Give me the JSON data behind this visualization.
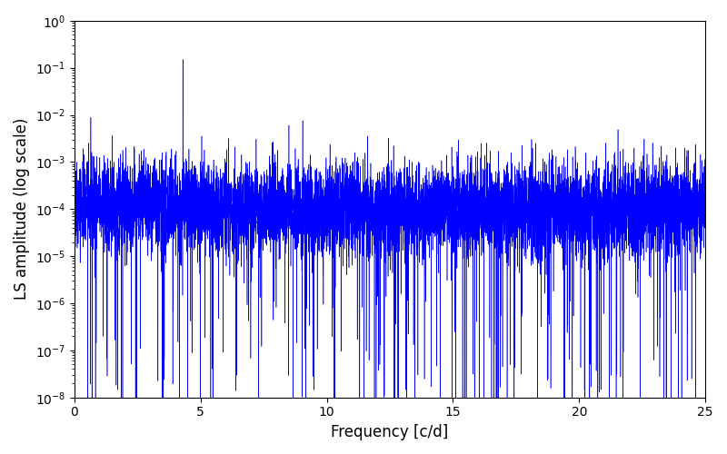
{
  "title": "",
  "xlabel": "Frequency [c/d]",
  "ylabel": "LS amplitude (log scale)",
  "xlim": [
    0,
    25
  ],
  "ylim": [
    1e-08,
    1
  ],
  "line_color": "#0000ff",
  "background_color": "#ffffff",
  "figsize": [
    8.0,
    5.0
  ],
  "dpi": 100,
  "n_points": 8000,
  "freq_max": 25.0,
  "seed": 42,
  "main_peak_freq": 4.3,
  "main_peak_amp": 0.15,
  "second_peak_freq": 8.5,
  "second_peak_amp": 0.006,
  "noise_mean_log": -9.2,
  "noise_sigma": 1.1
}
